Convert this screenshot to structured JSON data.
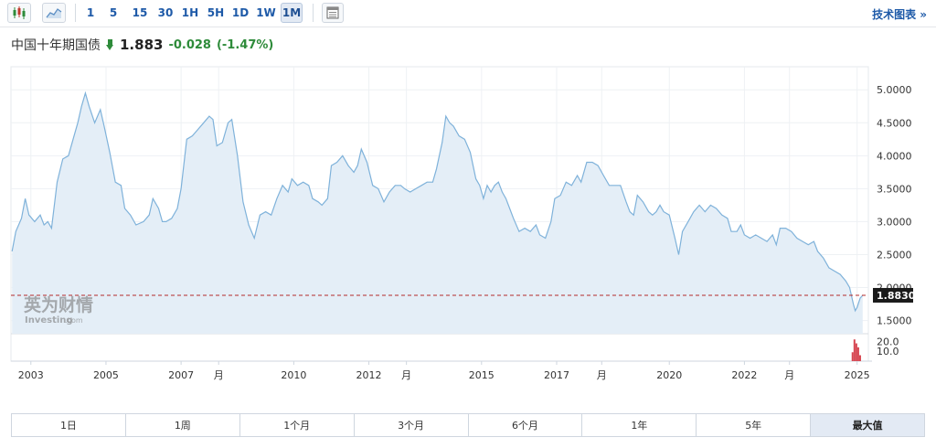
{
  "toolbar": {
    "icons": [
      "candlestick-icon",
      "area-chart-icon"
    ],
    "intervals": [
      "1",
      "5",
      "15",
      "30",
      "1H",
      "5H",
      "1D",
      "1W",
      "1M"
    ],
    "active_interval": "1M",
    "table_icon": "table-icon",
    "tech_chart_label": "技术图表 »"
  },
  "header": {
    "instrument": "中国十年期国债",
    "last_price": "1.883",
    "change": "-0.028",
    "change_pct": "(-1.47%)",
    "direction": "down",
    "change_color": "#2e8b3a"
  },
  "watermark": {
    "cn": "英为财情",
    "en": "Investing",
    "suffix": ".com"
  },
  "chart_data": {
    "type": "area",
    "title": "",
    "xlabel": "",
    "ylabel": "",
    "ylim": [
      1.3,
      5.35
    ],
    "yticks": [
      "5.0000",
      "4.5000",
      "4.0000",
      "3.5000",
      "3.0000",
      "2.5000",
      "2.0000",
      "1.5000"
    ],
    "current_value": 1.883,
    "current_label": "1.8830",
    "x_tick_labels": [
      {
        "t": 2003.0,
        "label": "2003"
      },
      {
        "t": 2005.0,
        "label": "2005"
      },
      {
        "t": 2007.0,
        "label": "2007"
      },
      {
        "t": 2008.0,
        "label": "月"
      },
      {
        "t": 2010.0,
        "label": "2010"
      },
      {
        "t": 2012.0,
        "label": "2012"
      },
      {
        "t": 2013.0,
        "label": "月"
      },
      {
        "t": 2015.0,
        "label": "2015"
      },
      {
        "t": 2017.0,
        "label": "2017"
      },
      {
        "t": 2018.2,
        "label": "月"
      },
      {
        "t": 2020.0,
        "label": "2020"
      },
      {
        "t": 2022.0,
        "label": "2022"
      },
      {
        "t": 2023.2,
        "label": "月"
      },
      {
        "t": 2025.0,
        "label": "2025"
      }
    ],
    "series": [
      {
        "values": [
          [
            2002.5,
            2.55
          ],
          [
            2002.6,
            2.85
          ],
          [
            2002.75,
            3.05
          ],
          [
            2002.85,
            3.35
          ],
          [
            2002.95,
            3.1
          ],
          [
            2003.1,
            3.0
          ],
          [
            2003.25,
            3.1
          ],
          [
            2003.35,
            2.95
          ],
          [
            2003.45,
            3.0
          ],
          [
            2003.55,
            2.9
          ],
          [
            2003.7,
            3.6
          ],
          [
            2003.85,
            3.95
          ],
          [
            2004.0,
            4.0
          ],
          [
            2004.15,
            4.3
          ],
          [
            2004.25,
            4.5
          ],
          [
            2004.35,
            4.75
          ],
          [
            2004.45,
            4.95
          ],
          [
            2004.55,
            4.75
          ],
          [
            2004.7,
            4.5
          ],
          [
            2004.85,
            4.7
          ],
          [
            2004.95,
            4.45
          ],
          [
            2005.1,
            4.05
          ],
          [
            2005.25,
            3.6
          ],
          [
            2005.4,
            3.55
          ],
          [
            2005.5,
            3.2
          ],
          [
            2005.65,
            3.1
          ],
          [
            2005.8,
            2.95
          ],
          [
            2006.0,
            3.0
          ],
          [
            2006.15,
            3.1
          ],
          [
            2006.25,
            3.35
          ],
          [
            2006.4,
            3.2
          ],
          [
            2006.5,
            3.0
          ],
          [
            2006.6,
            3.0
          ],
          [
            2006.75,
            3.05
          ],
          [
            2006.9,
            3.2
          ],
          [
            2007.0,
            3.5
          ],
          [
            2007.15,
            4.25
          ],
          [
            2007.3,
            4.3
          ],
          [
            2007.45,
            4.4
          ],
          [
            2007.6,
            4.5
          ],
          [
            2007.75,
            4.6
          ],
          [
            2007.85,
            4.55
          ],
          [
            2007.95,
            4.15
          ],
          [
            2008.1,
            4.2
          ],
          [
            2008.25,
            4.5
          ],
          [
            2008.35,
            4.55
          ],
          [
            2008.5,
            4.0
          ],
          [
            2008.65,
            3.3
          ],
          [
            2008.8,
            2.95
          ],
          [
            2008.95,
            2.75
          ],
          [
            2009.1,
            3.1
          ],
          [
            2009.25,
            3.15
          ],
          [
            2009.4,
            3.1
          ],
          [
            2009.55,
            3.35
          ],
          [
            2009.7,
            3.55
          ],
          [
            2009.85,
            3.45
          ],
          [
            2009.95,
            3.65
          ],
          [
            2010.1,
            3.55
          ],
          [
            2010.25,
            3.6
          ],
          [
            2010.4,
            3.55
          ],
          [
            2010.5,
            3.35
          ],
          [
            2010.65,
            3.3
          ],
          [
            2010.75,
            3.25
          ],
          [
            2010.9,
            3.35
          ],
          [
            2011.0,
            3.85
          ],
          [
            2011.15,
            3.9
          ],
          [
            2011.3,
            4.0
          ],
          [
            2011.45,
            3.85
          ],
          [
            2011.6,
            3.75
          ],
          [
            2011.7,
            3.85
          ],
          [
            2011.8,
            4.1
          ],
          [
            2011.95,
            3.9
          ],
          [
            2012.1,
            3.55
          ],
          [
            2012.25,
            3.5
          ],
          [
            2012.4,
            3.3
          ],
          [
            2012.55,
            3.45
          ],
          [
            2012.7,
            3.55
          ],
          [
            2012.85,
            3.55
          ],
          [
            2012.95,
            3.5
          ],
          [
            2013.1,
            3.45
          ],
          [
            2013.25,
            3.5
          ],
          [
            2013.4,
            3.55
          ],
          [
            2013.55,
            3.6
          ],
          [
            2013.7,
            3.6
          ],
          [
            2013.8,
            3.8
          ],
          [
            2013.95,
            4.2
          ],
          [
            2014.05,
            4.6
          ],
          [
            2014.15,
            4.5
          ],
          [
            2014.25,
            4.45
          ],
          [
            2014.4,
            4.3
          ],
          [
            2014.55,
            4.25
          ],
          [
            2014.7,
            4.05
          ],
          [
            2014.85,
            3.65
          ],
          [
            2014.95,
            3.55
          ],
          [
            2015.05,
            3.35
          ],
          [
            2015.15,
            3.55
          ],
          [
            2015.25,
            3.45
          ],
          [
            2015.35,
            3.55
          ],
          [
            2015.45,
            3.6
          ],
          [
            2015.55,
            3.45
          ],
          [
            2015.65,
            3.35
          ],
          [
            2015.75,
            3.2
          ],
          [
            2015.85,
            3.05
          ],
          [
            2016.0,
            2.85
          ],
          [
            2016.15,
            2.9
          ],
          [
            2016.3,
            2.85
          ],
          [
            2016.45,
            2.95
          ],
          [
            2016.55,
            2.8
          ],
          [
            2016.7,
            2.75
          ],
          [
            2016.85,
            3.0
          ],
          [
            2016.95,
            3.35
          ],
          [
            2017.1,
            3.4
          ],
          [
            2017.25,
            3.6
          ],
          [
            2017.4,
            3.55
          ],
          [
            2017.55,
            3.7
          ],
          [
            2017.65,
            3.6
          ],
          [
            2017.8,
            3.9
          ],
          [
            2017.95,
            3.9
          ],
          [
            2018.1,
            3.85
          ],
          [
            2018.25,
            3.7
          ],
          [
            2018.4,
            3.55
          ],
          [
            2018.55,
            3.55
          ],
          [
            2018.7,
            3.55
          ],
          [
            2018.85,
            3.3
          ],
          [
            2018.95,
            3.15
          ],
          [
            2019.05,
            3.1
          ],
          [
            2019.15,
            3.4
          ],
          [
            2019.3,
            3.3
          ],
          [
            2019.45,
            3.15
          ],
          [
            2019.55,
            3.1
          ],
          [
            2019.65,
            3.15
          ],
          [
            2019.75,
            3.25
          ],
          [
            2019.85,
            3.15
          ],
          [
            2020.0,
            3.1
          ],
          [
            2020.15,
            2.75
          ],
          [
            2020.25,
            2.5
          ],
          [
            2020.35,
            2.85
          ],
          [
            2020.5,
            3.0
          ],
          [
            2020.65,
            3.15
          ],
          [
            2020.8,
            3.25
          ],
          [
            2020.95,
            3.15
          ],
          [
            2021.1,
            3.25
          ],
          [
            2021.25,
            3.2
          ],
          [
            2021.4,
            3.1
          ],
          [
            2021.55,
            3.05
          ],
          [
            2021.65,
            2.85
          ],
          [
            2021.8,
            2.85
          ],
          [
            2021.9,
            2.95
          ],
          [
            2022.0,
            2.8
          ],
          [
            2022.15,
            2.75
          ],
          [
            2022.3,
            2.8
          ],
          [
            2022.45,
            2.75
          ],
          [
            2022.6,
            2.7
          ],
          [
            2022.75,
            2.8
          ],
          [
            2022.85,
            2.65
          ],
          [
            2022.95,
            2.9
          ],
          [
            2023.1,
            2.9
          ],
          [
            2023.25,
            2.85
          ],
          [
            2023.4,
            2.75
          ],
          [
            2023.55,
            2.7
          ],
          [
            2023.7,
            2.65
          ],
          [
            2023.85,
            2.7
          ],
          [
            2023.95,
            2.55
          ],
          [
            2024.1,
            2.45
          ],
          [
            2024.25,
            2.3
          ],
          [
            2024.4,
            2.25
          ],
          [
            2024.55,
            2.2
          ],
          [
            2024.7,
            2.1
          ],
          [
            2024.8,
            2.0
          ],
          [
            2024.9,
            1.75
          ],
          [
            2024.95,
            1.65
          ],
          [
            2025.0,
            1.7
          ],
          [
            2025.08,
            1.84
          ],
          [
            2025.15,
            1.883
          ]
        ]
      }
    ],
    "volume": {
      "yticks": [
        "20.0",
        "10.0"
      ],
      "bars": [
        [
          2024.88,
          9
        ],
        [
          2024.93,
          22
        ],
        [
          2024.98,
          18
        ],
        [
          2025.03,
          14
        ],
        [
          2025.08,
          6
        ]
      ]
    }
  },
  "range_buttons": [
    "1日",
    "1周",
    "1个月",
    "3个月",
    "6个月",
    "1年",
    "5年",
    "最大值"
  ],
  "active_range": "最大值",
  "colors": {
    "line": "#7fb2da",
    "fill": "#e4eef7",
    "current_line": "#b52b2b",
    "price_tag": "#1a1a1a",
    "volume": "#d64550",
    "grid": "#eef1f4"
  }
}
